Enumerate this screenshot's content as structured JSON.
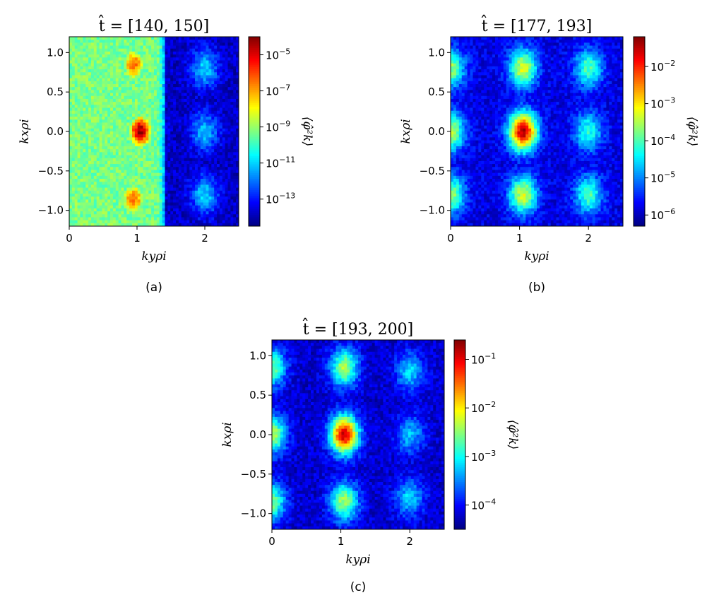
{
  "chart_data": [
    {
      "type": "heatmap",
      "panel_caption": "(a)",
      "title": "t̂ = [140, 150]",
      "xlabel": "kyρi",
      "ylabel": "kxρi",
      "colorbar_label": "⟨φ̂²k⟩",
      "colorbar_scale": "log",
      "colormap": "jet",
      "xlim": [
        0,
        2.5
      ],
      "ylim": [
        -1.2,
        1.2
      ],
      "xticks": [
        0,
        1,
        2
      ],
      "yticks": [
        -1.0,
        -0.5,
        0.0,
        0.5,
        1.0
      ],
      "colorbar_range_exp": [
        -14.5,
        -4.0
      ],
      "colorbar_ticks": [
        "10-5",
        "10-7",
        "10-9",
        "10-11",
        "10-13"
      ],
      "colorbar_tick_exps": [
        -5,
        -7,
        -9,
        -11,
        -13
      ],
      "features": [
        {
          "ky": 1.05,
          "kx": 0.0,
          "log10_peak": -4.3
        },
        {
          "ky": 0.95,
          "kx": 0.85,
          "log10_peak": -6.2
        },
        {
          "ky": 0.95,
          "kx": -0.85,
          "log10_peak": -6.2
        },
        {
          "ky": 2.0,
          "kx": 0.8,
          "log10_peak": -11.0
        },
        {
          "ky": 2.0,
          "kx": 0.0,
          "log10_peak": -11.2
        },
        {
          "ky": 2.0,
          "kx": -0.8,
          "log10_peak": -11.0
        }
      ],
      "background_log10": -13.8,
      "plateau_ky_max": 1.4,
      "plateau_log10": -9.3
    },
    {
      "type": "heatmap",
      "panel_caption": "(b)",
      "title": "t̂ = [177, 193]",
      "xlabel": "kyρi",
      "ylabel": "kxρi",
      "colorbar_label": "⟨φ̂²k⟩",
      "colorbar_scale": "log",
      "colormap": "jet",
      "xlim": [
        0,
        2.5
      ],
      "ylim": [
        -1.2,
        1.2
      ],
      "xticks": [
        0,
        1,
        2
      ],
      "yticks": [
        -1.0,
        -0.5,
        0.0,
        0.5,
        1.0
      ],
      "colorbar_range_exp": [
        -6.3,
        -1.2
      ],
      "colorbar_ticks": [
        "10-2",
        "10-3",
        "10-4",
        "10-5",
        "10-6"
      ],
      "colorbar_tick_exps": [
        -2,
        -3,
        -4,
        -5,
        -6
      ],
      "features": [
        {
          "ky": 1.05,
          "kx": 0.0,
          "log10_peak": -1.5
        },
        {
          "ky": 1.05,
          "kx": 0.8,
          "log10_peak": -3.3
        },
        {
          "ky": 1.05,
          "kx": -0.8,
          "log10_peak": -3.3
        },
        {
          "ky": 0.0,
          "kx": 0.8,
          "log10_peak": -3.6
        },
        {
          "ky": 0.0,
          "kx": 0.0,
          "log10_peak": -3.4
        },
        {
          "ky": 0.0,
          "kx": -0.8,
          "log10_peak": -3.6
        },
        {
          "ky": 2.0,
          "kx": 0.8,
          "log10_peak": -4.0
        },
        {
          "ky": 2.0,
          "kx": 0.0,
          "log10_peak": -4.2
        },
        {
          "ky": 2.0,
          "kx": -0.8,
          "log10_peak": -4.0
        }
      ],
      "background_log10": -5.8
    },
    {
      "type": "heatmap",
      "panel_caption": "(c)",
      "title": "t̂ = [193, 200]",
      "xlabel": "kyρi",
      "ylabel": "kxρi",
      "colorbar_label": "⟨φ̂²k⟩",
      "colorbar_scale": "log",
      "colormap": "jet",
      "xlim": [
        0,
        2.5
      ],
      "ylim": [
        -1.2,
        1.2
      ],
      "xticks": [
        0,
        1,
        2
      ],
      "yticks": [
        -1.0,
        -0.5,
        0.0,
        0.5,
        1.0
      ],
      "colorbar_range_exp": [
        -4.5,
        -0.6
      ],
      "colorbar_ticks": [
        "10-1",
        "10-2",
        "10-3",
        "10-4"
      ],
      "colorbar_tick_exps": [
        -1,
        -2,
        -3,
        -4
      ],
      "features": [
        {
          "ky": 1.05,
          "kx": 0.0,
          "log10_peak": -0.9
        },
        {
          "ky": 1.05,
          "kx": 0.85,
          "log10_peak": -2.4
        },
        {
          "ky": 1.05,
          "kx": -0.85,
          "log10_peak": -2.4
        },
        {
          "ky": 0.0,
          "kx": 0.85,
          "log10_peak": -2.6
        },
        {
          "ky": 0.0,
          "kx": 0.0,
          "log10_peak": -2.3
        },
        {
          "ky": 0.0,
          "kx": -0.85,
          "log10_peak": -2.6
        },
        {
          "ky": 2.0,
          "kx": 0.8,
          "log10_peak": -3.2
        },
        {
          "ky": 2.0,
          "kx": 0.0,
          "log10_peak": -3.3
        },
        {
          "ky": 2.0,
          "kx": -0.8,
          "log10_peak": -3.2
        }
      ],
      "background_log10": -4.2
    }
  ]
}
